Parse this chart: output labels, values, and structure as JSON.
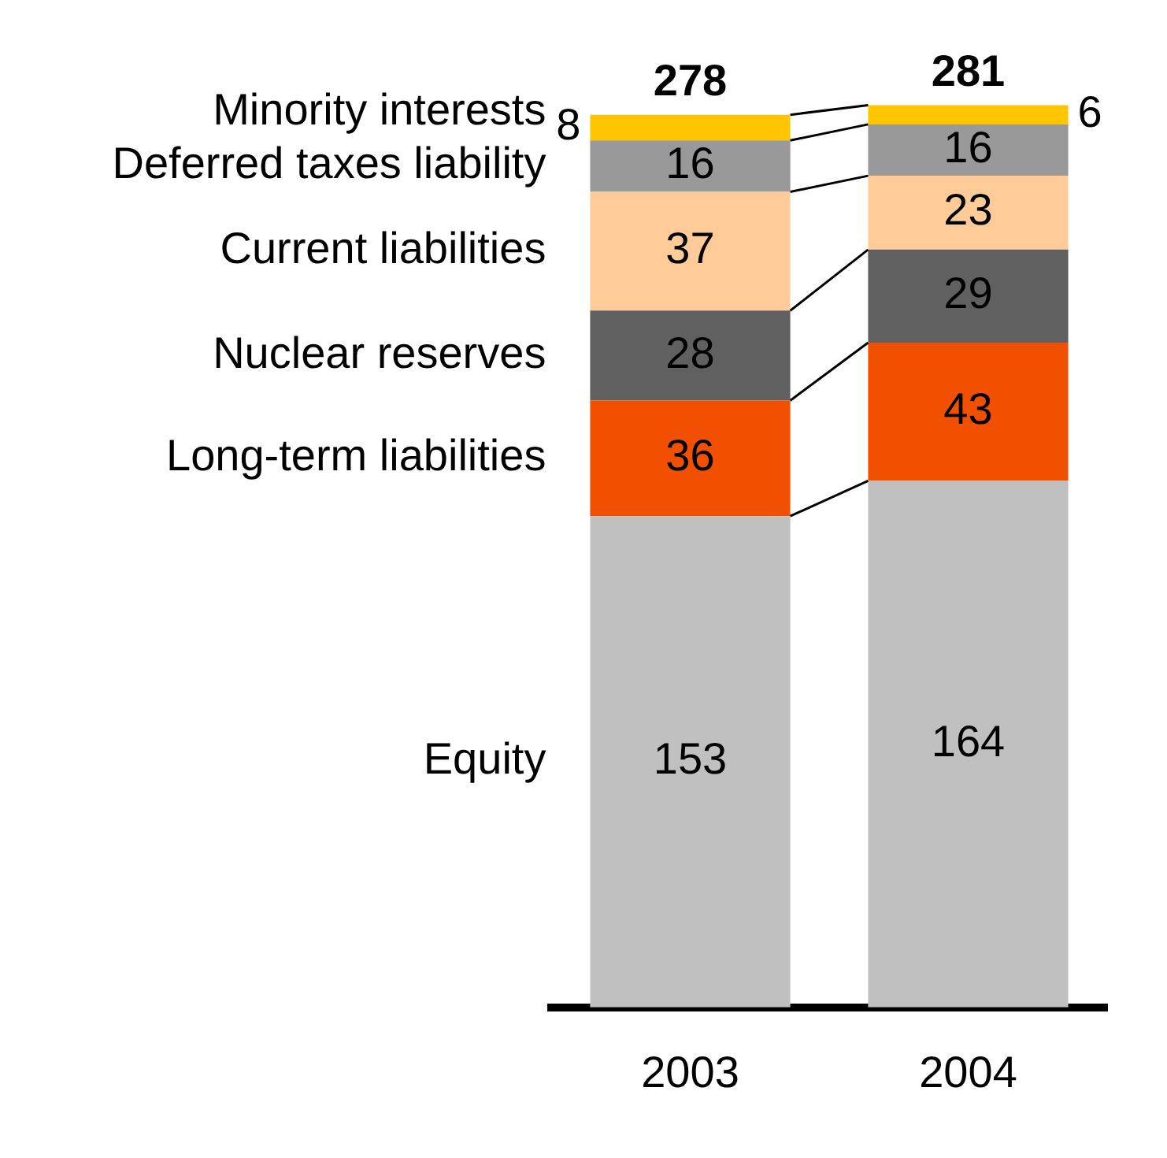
{
  "chart_data": {
    "type": "bar",
    "stacked": true,
    "categories": [
      "2003",
      "2004"
    ],
    "tick_labels": "x",
    "grid": false,
    "legend": "left",
    "data_labels": true,
    "totals": [
      "278",
      "281"
    ],
    "series": [
      {
        "name": "Equity",
        "color": "#c0c0c0",
        "values": [
          153,
          164
        ]
      },
      {
        "name": "Long-term liabilities",
        "color": "#f05000",
        "values": [
          36,
          43
        ]
      },
      {
        "name": "Nuclear reserves",
        "color": "#606060",
        "values": [
          28,
          29
        ]
      },
      {
        "name": "Current liabilities",
        "color": "#ffcc99",
        "values": [
          37,
          23
        ]
      },
      {
        "name": "Deferred taxes liability",
        "color": "#999999",
        "values": [
          16,
          16
        ]
      },
      {
        "name": "Minority interests",
        "color": "#ffc600",
        "values": [
          8,
          6
        ]
      }
    ]
  }
}
